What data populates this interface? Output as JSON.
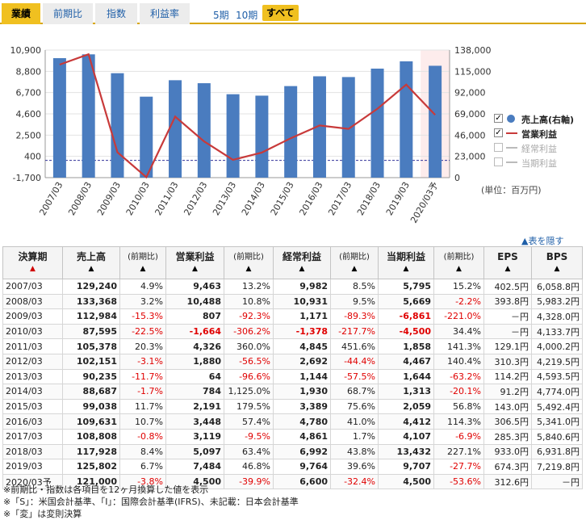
{
  "tabs": [
    "業績",
    "前期比",
    "指数",
    "利益率"
  ],
  "periods": [
    "5期",
    "10期",
    "すべて"
  ],
  "legend": {
    "items": [
      {
        "label": "売上高(右軸)",
        "checked": true
      },
      {
        "label": "営業利益",
        "checked": true
      },
      {
        "label": "経常利益",
        "checked": false
      },
      {
        "label": "当期利益",
        "checked": false
      }
    ]
  },
  "unit_label": "(単位：百万円)",
  "hide_table": "▲表を隠す",
  "chart_data": {
    "type": "bar",
    "title": "",
    "categories": [
      "2007/03",
      "2008/03",
      "2009/03",
      "2010/03",
      "2011/03",
      "2012/03",
      "2013/03",
      "2014/03",
      "2015/03",
      "2016/03",
      "2017/03",
      "2018/03",
      "2019/03",
      "2020/03予"
    ],
    "series": [
      {
        "name": "売上高(右軸)",
        "type": "bar",
        "axis": "right",
        "values": [
          129240,
          133368,
          112984,
          87595,
          105378,
          102151,
          90235,
          88687,
          99038,
          109631,
          108808,
          117928,
          125802,
          121000
        ]
      },
      {
        "name": "営業利益",
        "type": "line",
        "axis": "left",
        "values": [
          9463,
          10488,
          807,
          -1664,
          4326,
          1880,
          64,
          784,
          2191,
          3448,
          3119,
          5097,
          7484,
          4500
        ]
      }
    ],
    "left_axis": {
      "ticks": [
        "10,900",
        "8,800",
        "6,700",
        "4,600",
        "2,500",
        "400",
        "-1,700"
      ],
      "min": -1700,
      "max": 10900
    },
    "right_axis": {
      "ticks": [
        "138,000",
        "115,000",
        "92,000",
        "69,000",
        "46,000",
        "23,000",
        "0"
      ],
      "min": 0,
      "max": 138000
    },
    "forecast_index": 13
  },
  "table": {
    "headers": [
      {
        "label": "決算期",
        "arrow": "▲"
      },
      {
        "label": "売上高",
        "arrow": "▲"
      },
      {
        "label": "(前期比)",
        "arrow": "▲"
      },
      {
        "label": "営業利益",
        "arrow": "▲"
      },
      {
        "label": "(前期比)",
        "arrow": "▲"
      },
      {
        "label": "経常利益",
        "arrow": "▲"
      },
      {
        "label": "(前期比)",
        "arrow": "▲"
      },
      {
        "label": "当期利益",
        "arrow": "▲"
      },
      {
        "label": "(前期比)",
        "arrow": "▲"
      },
      {
        "label": "EPS",
        "arrow": "▲"
      },
      {
        "label": "BPS",
        "arrow": "▲"
      }
    ],
    "rows": [
      [
        "2007/03",
        "129,240",
        "4.9%",
        "9,463",
        "13.2%",
        "9,982",
        "8.5%",
        "5,795",
        "15.2%",
        "402.5円",
        "6,058.8円"
      ],
      [
        "2008/03",
        "133,368",
        "3.2%",
        "10,488",
        "10.8%",
        "10,931",
        "9.5%",
        "5,669",
        "-2.2%",
        "393.8円",
        "5,983.2円"
      ],
      [
        "2009/03",
        "112,984",
        "-15.3%",
        "807",
        "-92.3%",
        "1,171",
        "-89.3%",
        "-6,861",
        "-221.0%",
        "－円",
        "4,328.0円"
      ],
      [
        "2010/03",
        "87,595",
        "-22.5%",
        "-1,664",
        "-306.2%",
        "-1,378",
        "-217.7%",
        "-4,500",
        "34.4%",
        "－円",
        "4,133.7円"
      ],
      [
        "2011/03",
        "105,378",
        "20.3%",
        "4,326",
        "360.0%",
        "4,845",
        "451.6%",
        "1,858",
        "141.3%",
        "129.1円",
        "4,000.2円"
      ],
      [
        "2012/03",
        "102,151",
        "-3.1%",
        "1,880",
        "-56.5%",
        "2,692",
        "-44.4%",
        "4,467",
        "140.4%",
        "310.3円",
        "4,219.5円"
      ],
      [
        "2013/03",
        "90,235",
        "-11.7%",
        "64",
        "-96.6%",
        "1,144",
        "-57.5%",
        "1,644",
        "-63.2%",
        "114.2円",
        "4,593.5円"
      ],
      [
        "2014/03",
        "88,687",
        "-1.7%",
        "784",
        "1,125.0%",
        "1,930",
        "68.7%",
        "1,313",
        "-20.1%",
        "91.2円",
        "4,774.0円"
      ],
      [
        "2015/03",
        "99,038",
        "11.7%",
        "2,191",
        "179.5%",
        "3,389",
        "75.6%",
        "2,059",
        "56.8%",
        "143.0円",
        "5,492.4円"
      ],
      [
        "2016/03",
        "109,631",
        "10.7%",
        "3,448",
        "57.4%",
        "4,780",
        "41.0%",
        "4,412",
        "114.3%",
        "306.5円",
        "5,341.0円"
      ],
      [
        "2017/03",
        "108,808",
        "-0.8%",
        "3,119",
        "-9.5%",
        "4,861",
        "1.7%",
        "4,107",
        "-6.9%",
        "285.3円",
        "5,840.6円"
      ],
      [
        "2018/03",
        "117,928",
        "8.4%",
        "5,097",
        "63.4%",
        "6,992",
        "43.8%",
        "13,432",
        "227.1%",
        "933.0円",
        "6,931.8円"
      ],
      [
        "2019/03",
        "125,802",
        "6.7%",
        "7,484",
        "46.8%",
        "9,764",
        "39.6%",
        "9,707",
        "-27.7%",
        "674.3円",
        "7,219.8円"
      ],
      [
        "2020/03予",
        "121,000",
        "-3.8%",
        "4,500",
        "-39.9%",
        "6,600",
        "-32.4%",
        "4,500",
        "-53.6%",
        "312.6円",
        "－円"
      ]
    ]
  },
  "notes": [
    "※前期比・指数は各項目を12ヶ月換算した値を表示",
    "※「S」：米国会計基準、「I」：国際会計基準(IFRS)、未記載：日本会計基準",
    "※「変」は変則決算"
  ]
}
